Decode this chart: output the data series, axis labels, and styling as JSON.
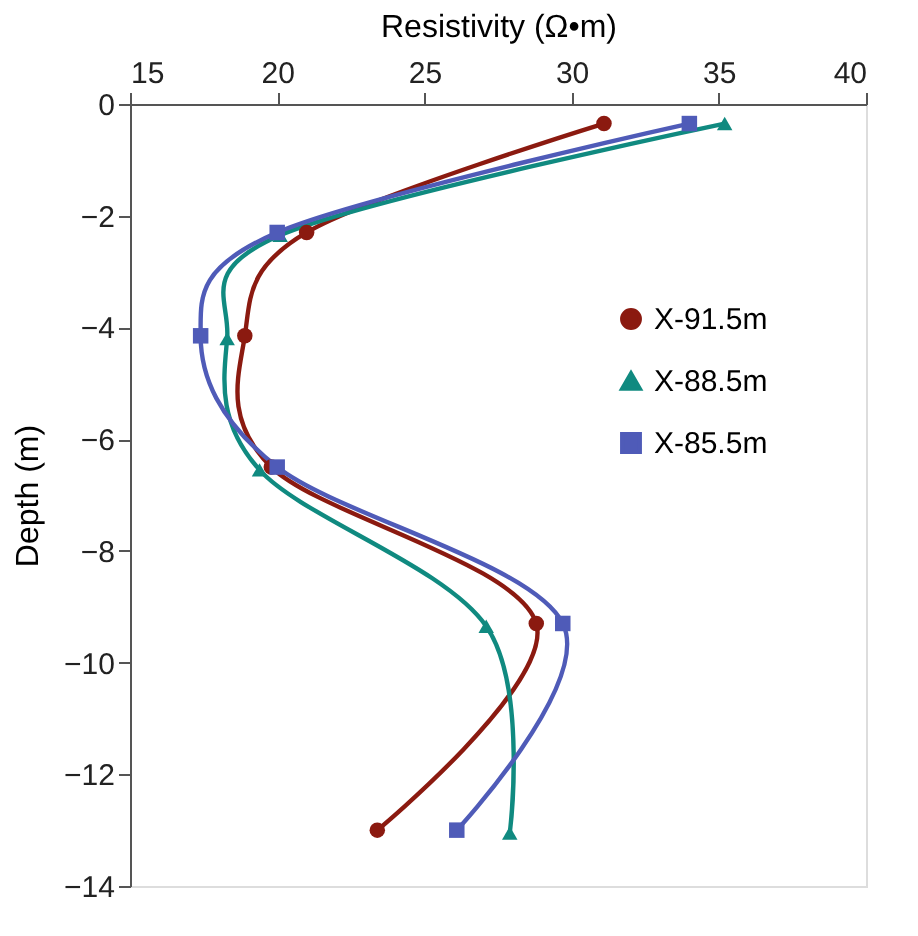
{
  "chart_data": {
    "type": "line",
    "xlabel": "Resistivity  (Ω•m)",
    "ylabel": "Depth (m)",
    "xlim": [
      15,
      40
    ],
    "xticks": [
      15,
      20,
      25,
      30,
      35,
      40
    ],
    "ylim": [
      -14,
      0
    ],
    "yticks": [
      0,
      -2,
      -4,
      -6,
      -8,
      -10,
      -12,
      -14
    ],
    "grid": false,
    "legend": "right",
    "line_style": "solid",
    "series": [
      {
        "name": "X-91.5m",
        "color": "#8b1a10",
        "marker": "circle",
        "x": [
          31.1,
          21.0,
          18.9,
          19.8,
          28.8,
          23.4
        ],
        "values": [
          -0.35,
          -2.3,
          -4.15,
          -6.5,
          -9.3,
          -13.0
        ]
      },
      {
        "name": "X-88.5m",
        "color": "#108a80",
        "marker": "triangle",
        "x": [
          35.2,
          20.1,
          18.3,
          19.4,
          27.1,
          27.9
        ],
        "values": [
          -0.35,
          -2.35,
          -4.2,
          -6.55,
          -9.35,
          -13.05
        ]
      },
      {
        "name": "X-85.5m",
        "color": "#4f5bb8",
        "marker": "square",
        "x": [
          34.0,
          20.0,
          17.4,
          20.0,
          29.7,
          26.1
        ],
        "values": [
          -0.35,
          -2.3,
          -4.15,
          -6.5,
          -9.3,
          -13.0
        ]
      }
    ]
  }
}
